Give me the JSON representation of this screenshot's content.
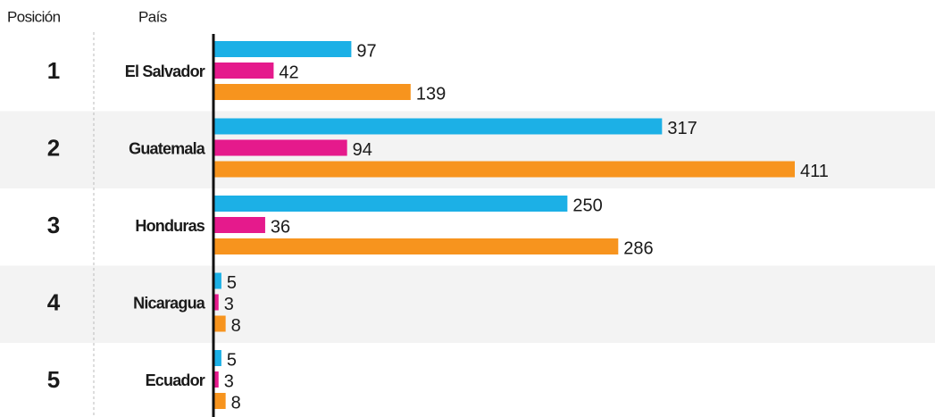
{
  "chart_data": {
    "type": "bar",
    "column_headers": [
      "Posición",
      "País"
    ],
    "positions": [
      1,
      2,
      3,
      4,
      5
    ],
    "categories": [
      "El Salvador",
      "Guatemala",
      "Honduras",
      "Nicaragua",
      "Ecuador"
    ],
    "series": [
      {
        "color": "#1cb0e6",
        "values": [
          97,
          317,
          250,
          5,
          5
        ]
      },
      {
        "color": "#e51a8c",
        "values": [
          42,
          94,
          36,
          3,
          3
        ]
      },
      {
        "color": "#f7941e",
        "values": [
          139,
          411,
          286,
          8,
          8
        ]
      }
    ]
  }
}
